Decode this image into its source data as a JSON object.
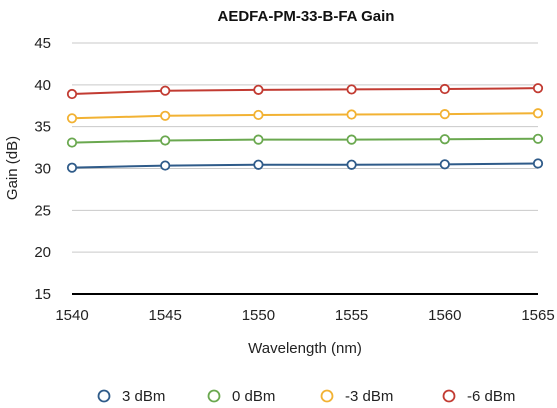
{
  "chart_data": {
    "type": "line",
    "title": "AEDFA-PM-33-B-FA Gain",
    "xlabel": "Wavelength (nm)",
    "ylabel": "Gain (dB)",
    "x": [
      1540,
      1545,
      1550,
      1555,
      1560,
      1565
    ],
    "x_tick_labels": [
      "1540",
      "1545",
      "1550",
      "1555",
      "1560",
      "1565"
    ],
    "y_tick_labels": [
      "15",
      "20",
      "25",
      "30",
      "35",
      "40",
      "45"
    ],
    "ylim": [
      15,
      45
    ],
    "xlim": [
      1540,
      1565
    ],
    "grid": "horizontal",
    "legend_position": "bottom",
    "series": [
      {
        "name": "3 dBm",
        "color": "#2f5b89",
        "values": [
          30.1,
          30.35,
          30.45,
          30.45,
          30.5,
          30.6
        ]
      },
      {
        "name": "0 dBm",
        "color": "#6aa84f",
        "values": [
          33.1,
          33.35,
          33.45,
          33.45,
          33.5,
          33.55
        ]
      },
      {
        "name": "-3 dBm",
        "color": "#f2b233",
        "values": [
          36.0,
          36.3,
          36.4,
          36.45,
          36.5,
          36.6
        ]
      },
      {
        "name": "-6 dBm",
        "color": "#c23b32",
        "values": [
          38.9,
          39.3,
          39.4,
          39.45,
          39.5,
          39.6
        ]
      }
    ]
  }
}
